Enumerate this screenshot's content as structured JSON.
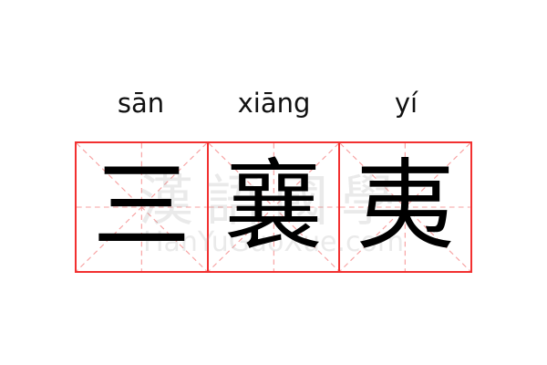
{
  "entries": [
    {
      "pinyin": "sān",
      "character": "三"
    },
    {
      "pinyin": "xiāng",
      "character": "襄"
    },
    {
      "pinyin": "yí",
      "character": "夷"
    }
  ],
  "watermark": {
    "title": "漢語國學",
    "site": "HanYuGuoXue.com"
  },
  "colors": {
    "grid_border": "#f23030",
    "guide_lines": "#f7a0a0",
    "text": "#000000"
  }
}
